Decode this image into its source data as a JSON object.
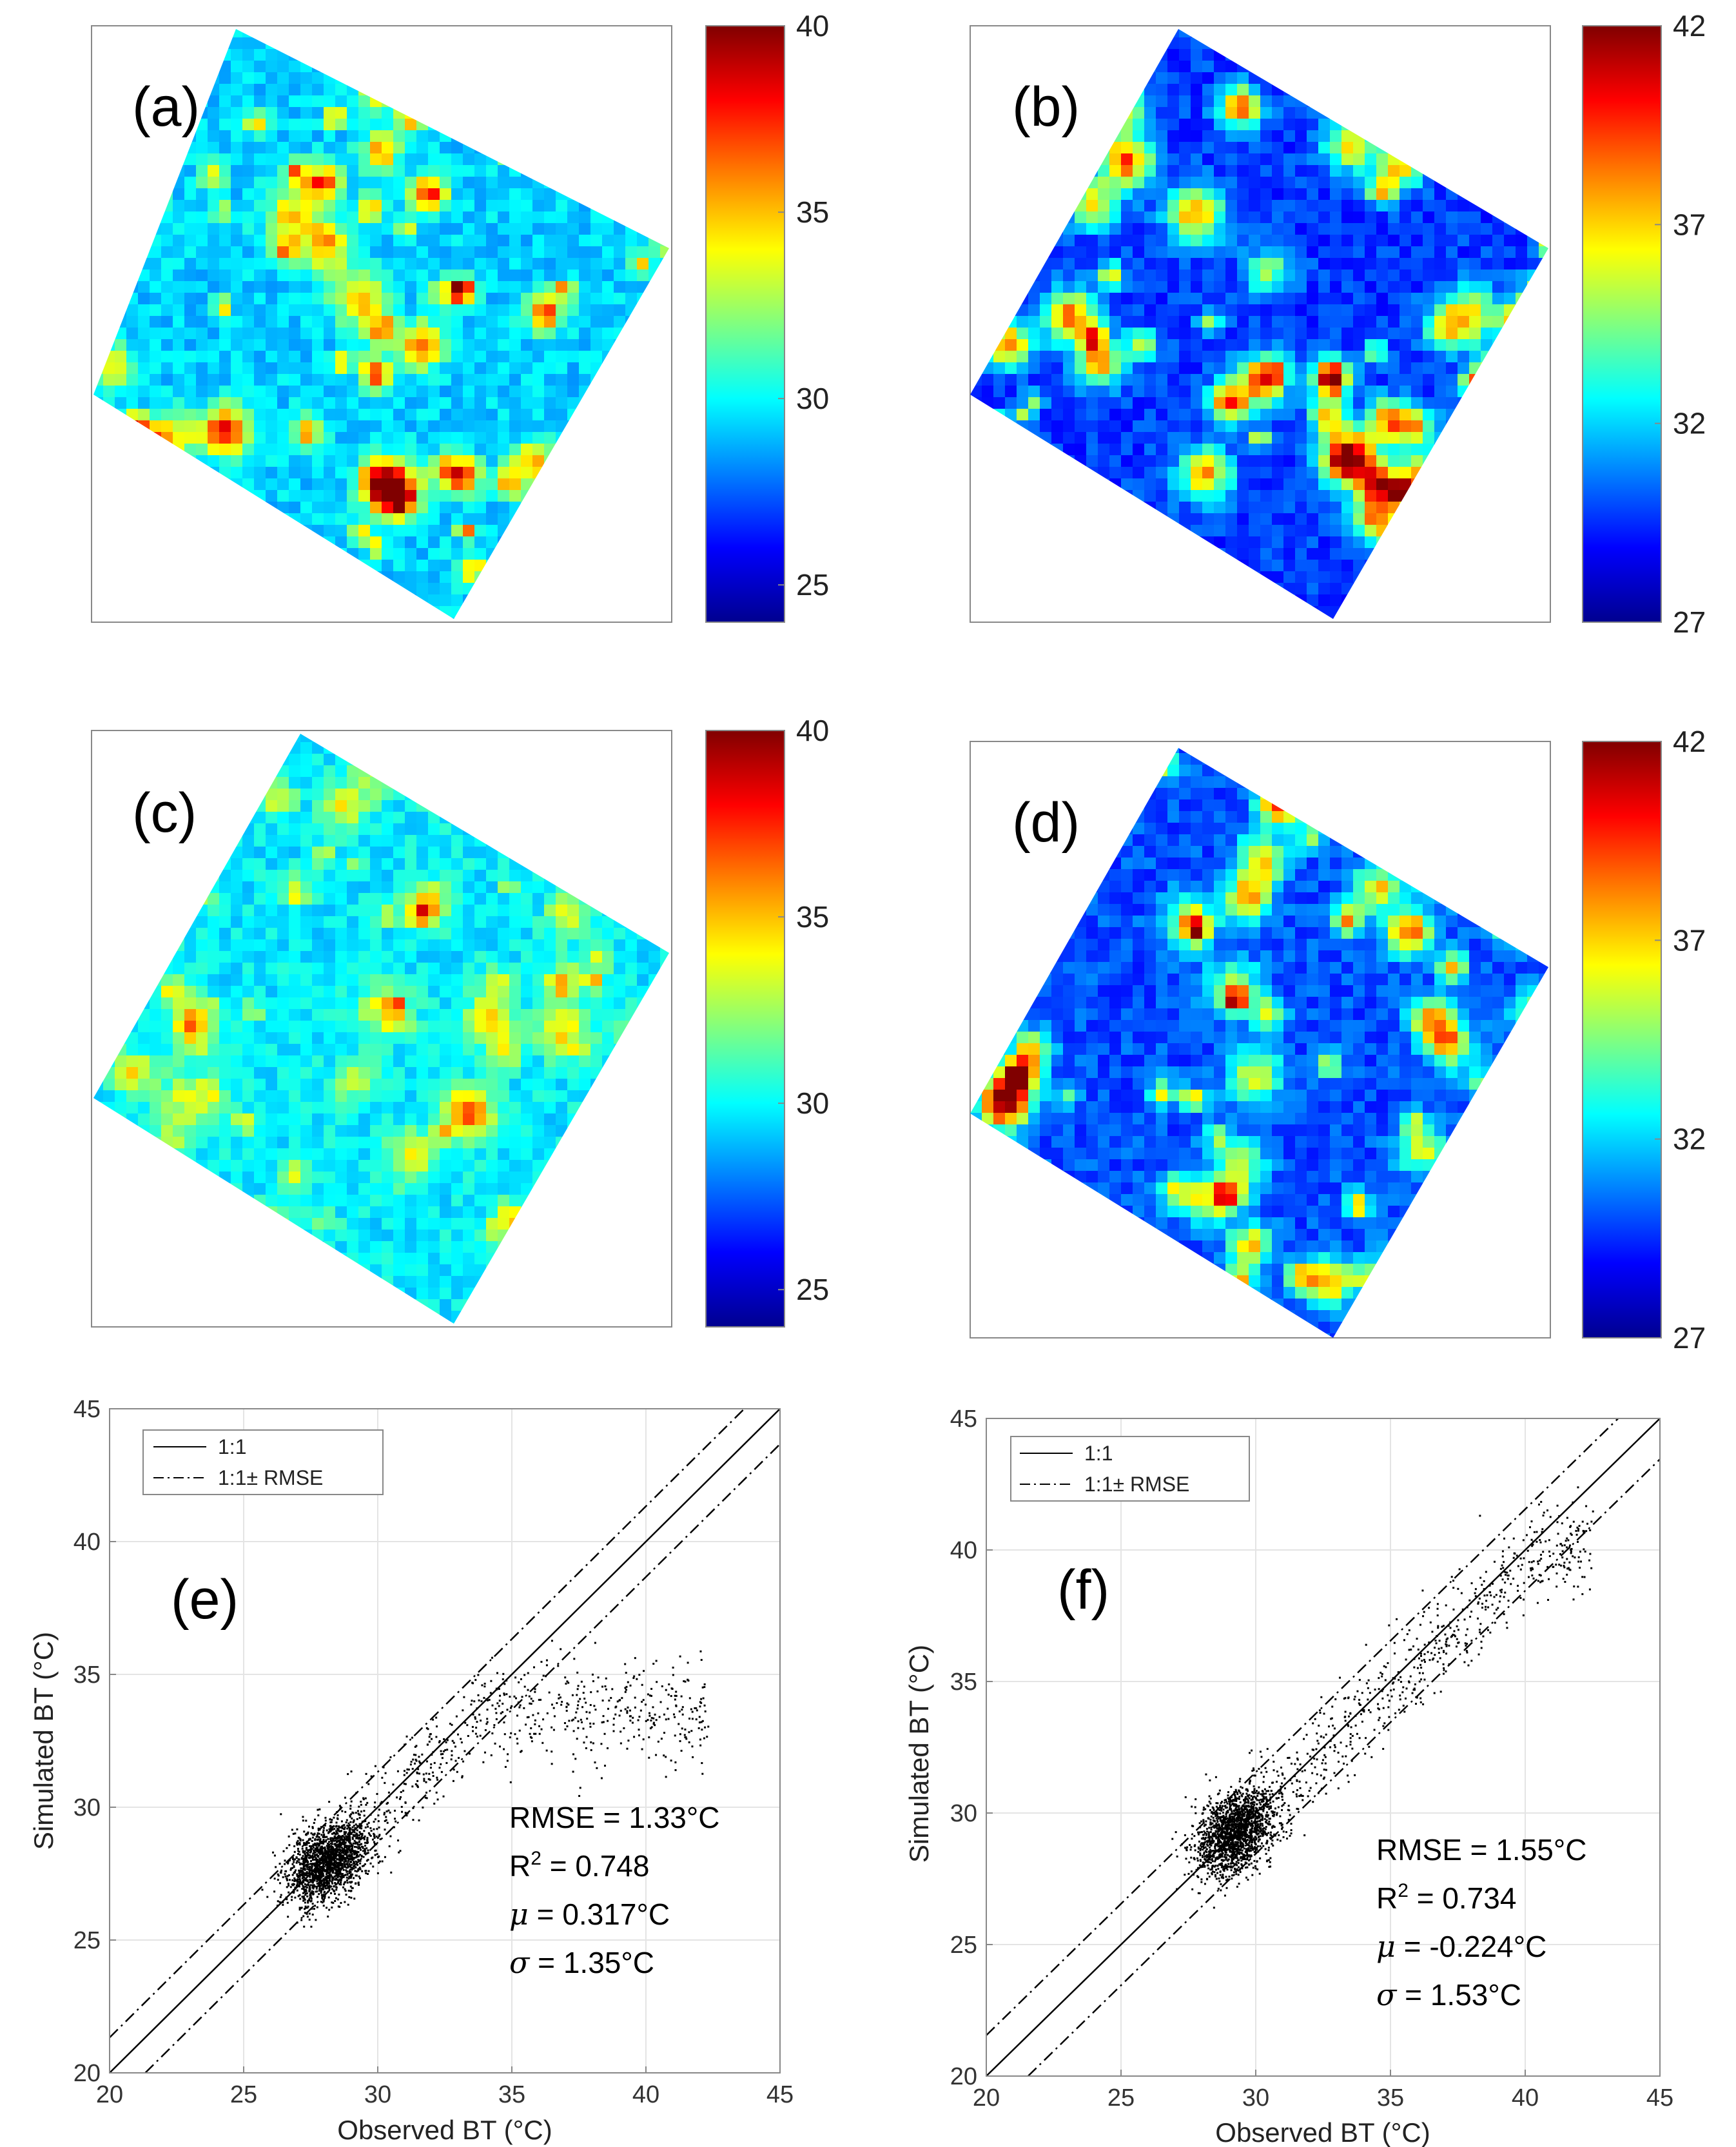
{
  "colors": {
    "jet": [
      "#00008f",
      "#0000ff",
      "#0080ff",
      "#00ffff",
      "#80ff80",
      "#ffff00",
      "#ff8000",
      "#ff0000",
      "#800000"
    ],
    "scatter_point": "#000000",
    "axis": "#888888",
    "grid": "#e4e4e4"
  },
  "chart_data": [
    {
      "type": "heatmap",
      "panel": "(a)",
      "colorbar": {
        "min": 24,
        "max": 40,
        "ticks": [
          25,
          30,
          35,
          40
        ],
        "tick_labels": [
          "25",
          "30",
          "35",
          "40"
        ]
      }
    },
    {
      "type": "heatmap",
      "panel": "(b)",
      "colorbar": {
        "min": 27,
        "max": 42,
        "ticks": [
          27,
          32,
          37,
          42
        ],
        "tick_labels": [
          "27",
          "32",
          "37",
          "42"
        ]
      }
    },
    {
      "type": "heatmap",
      "panel": "(c)",
      "colorbar": {
        "min": 24,
        "max": 40,
        "ticks": [
          25,
          30,
          35,
          40
        ],
        "tick_labels": [
          "25",
          "30",
          "35",
          "40"
        ]
      }
    },
    {
      "type": "heatmap",
      "panel": "(d)",
      "colorbar": {
        "min": 27,
        "max": 42,
        "ticks": [
          27,
          32,
          37,
          42
        ],
        "tick_labels": [
          "27",
          "32",
          "37",
          "42"
        ]
      }
    },
    {
      "type": "scatter",
      "panel": "(e)",
      "xlabel": "Observed BT (°C)",
      "ylabel": "Simulated BT (°C)",
      "xlim": [
        20,
        45
      ],
      "ylim": [
        20,
        45
      ],
      "xticks": [
        20,
        25,
        30,
        35,
        40,
        45
      ],
      "yticks": [
        20,
        25,
        30,
        35,
        40,
        45
      ],
      "legend": [
        "1:1",
        "1:1± RMSE"
      ],
      "rmse": 1.33,
      "stats": {
        "rmse": "RMSE = 1.33°C",
        "r2_prefix": "R",
        "r2_value": " = 0.748",
        "mu": " = 0.317°C",
        "sigma": " = 1.35°C"
      },
      "cloud": {
        "center": [
          28.1,
          28.0
        ],
        "spread": [
          0.75,
          0.7
        ],
        "tail_x_max": 42.3,
        "tail_plateau": 34.0
      }
    },
    {
      "type": "scatter",
      "panel": "(f)",
      "xlabel": "Observed BT (°C)",
      "ylabel": "Simulated BT (°C)",
      "xlim": [
        20,
        45
      ],
      "ylim": [
        20,
        45
      ],
      "xticks": [
        20,
        25,
        30,
        35,
        40,
        45
      ],
      "yticks": [
        20,
        25,
        30,
        35,
        40,
        45
      ],
      "legend": [
        "1:1",
        "1:1± RMSE"
      ],
      "rmse": 1.55,
      "stats": {
        "rmse": "RMSE = 1.55°C",
        "r2_prefix": "R",
        "r2_value": " = 0.734",
        "mu": " = -0.224°C",
        "sigma": " = 1.53°C"
      },
      "cloud": {
        "center": [
          29.2,
          29.3
        ],
        "spread": [
          0.7,
          0.75
        ],
        "tail_x_max": 42.5,
        "tail_plateau": 40.5
      }
    }
  ]
}
